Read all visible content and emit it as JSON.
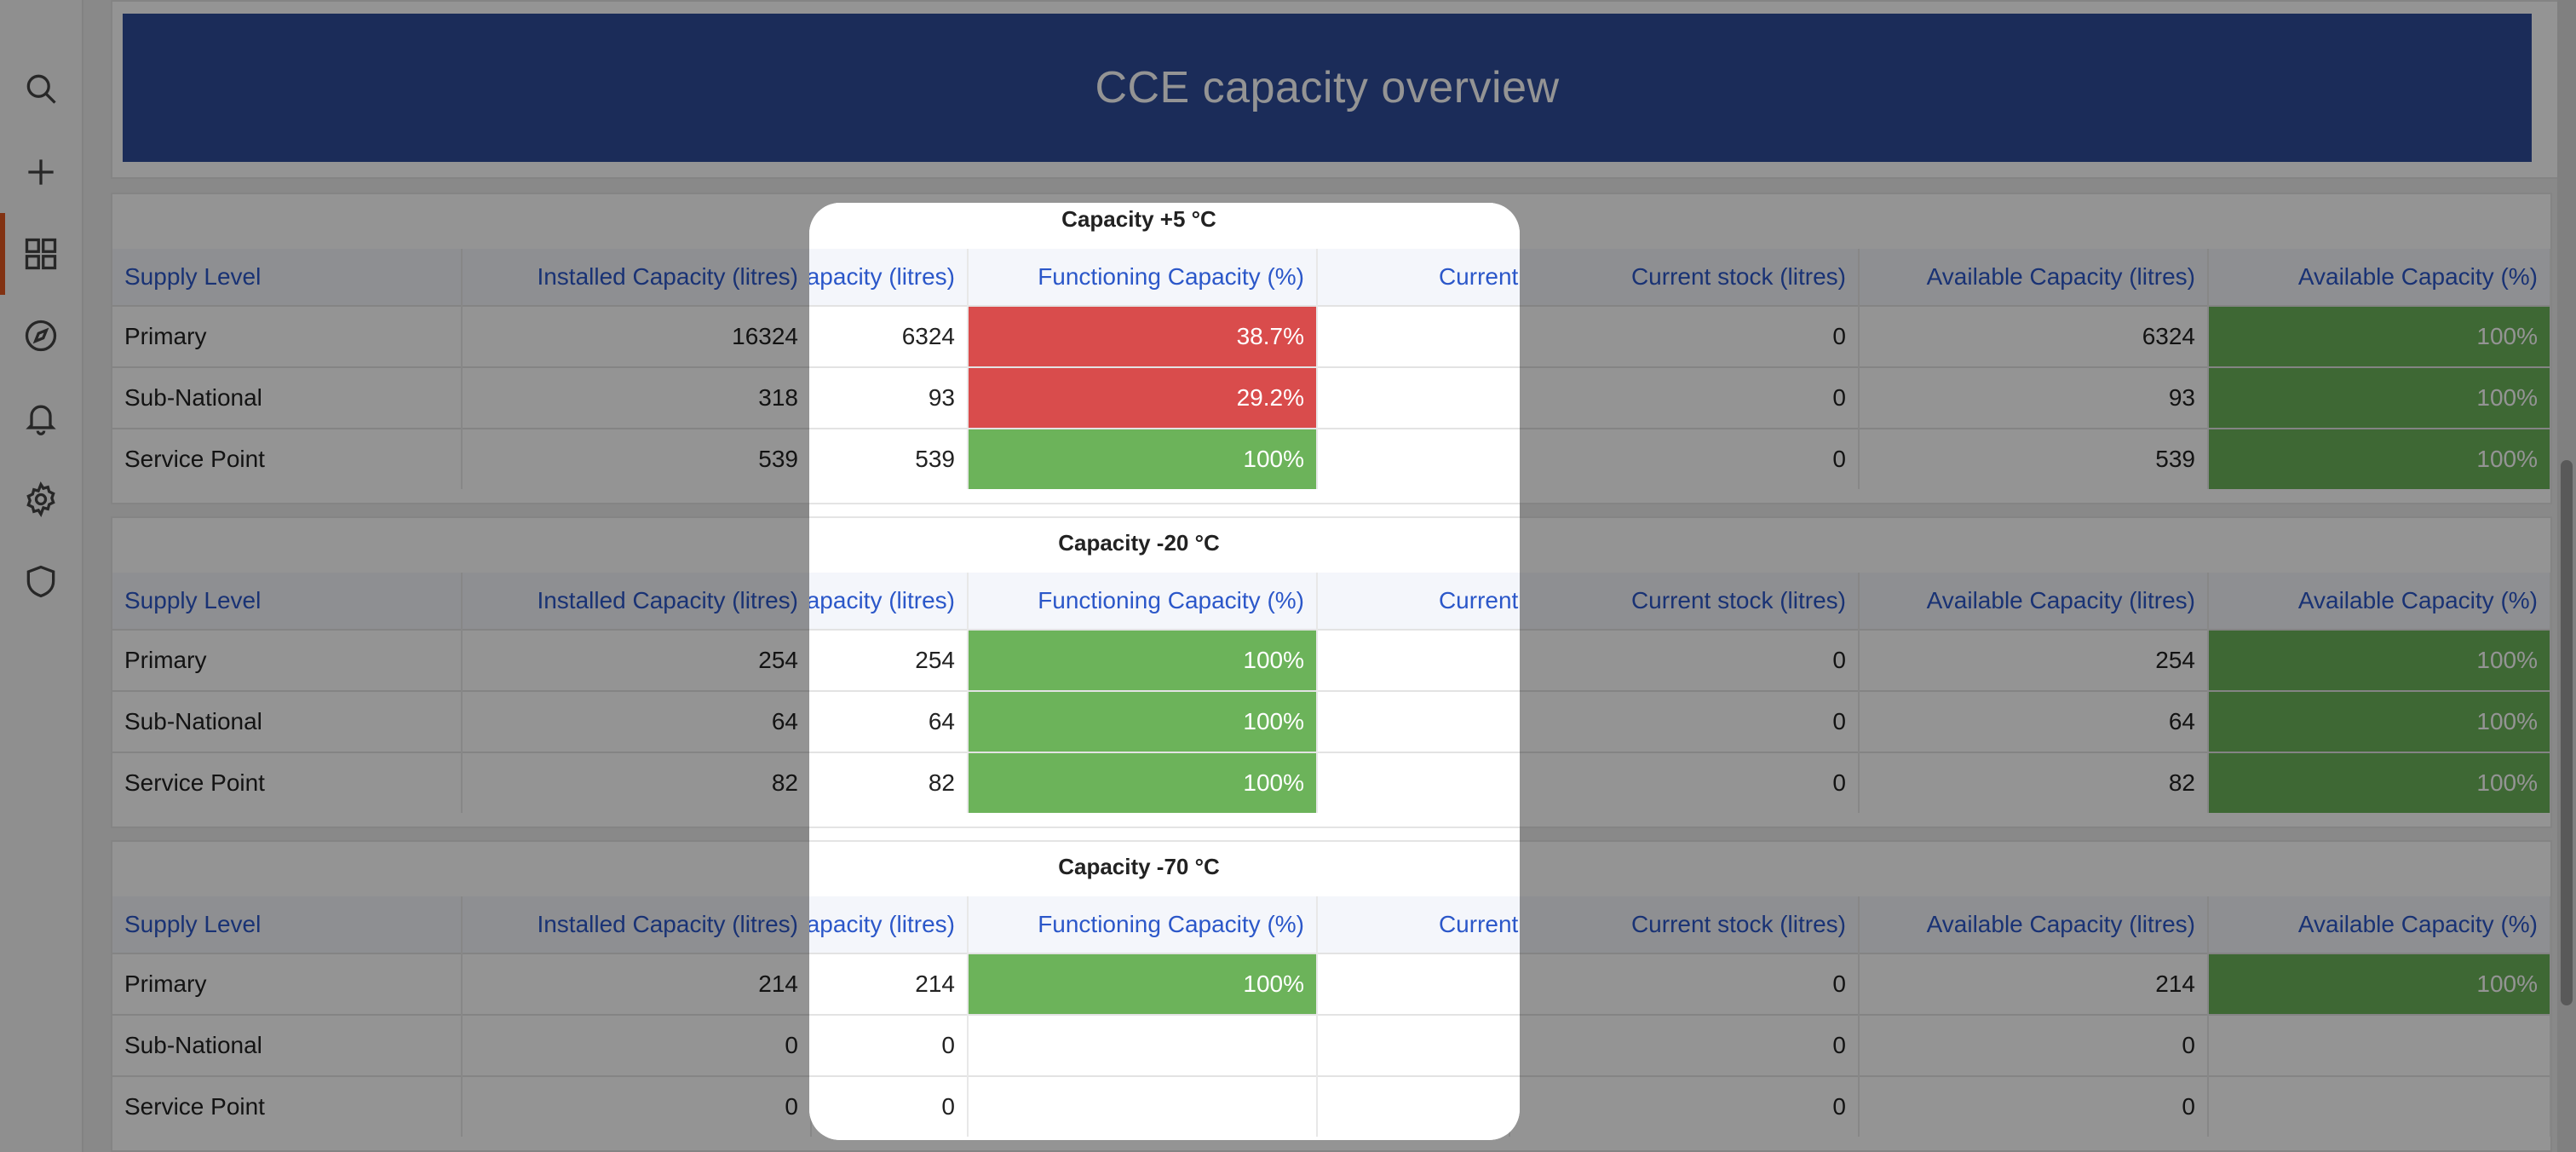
{
  "nav": {
    "items": [
      {
        "name": "search-icon"
      },
      {
        "name": "plus-icon"
      },
      {
        "name": "dashboard-grid-icon"
      },
      {
        "name": "compass-icon"
      },
      {
        "name": "bell-icon"
      },
      {
        "name": "gear-icon"
      },
      {
        "name": "shield-icon"
      }
    ],
    "active_color": "#e0561f"
  },
  "dashboard": {
    "title": "CCE capacity overview",
    "banner_color": "#2f4d9a"
  },
  "columns": [
    "Supply Level",
    "Installed Capacity (litres)",
    "Functioning Capacity (litres)",
    "Functioning Capacity (%)",
    "Current stock (litres)",
    "Available Capacity (litres)",
    "Available Capacity (%)"
  ],
  "panels": [
    {
      "title": "Capacity +5 °C",
      "rows": [
        {
          "level": "Primary",
          "installed": "16324",
          "functioning": "6324",
          "functioning_pct": "38.7%",
          "pct_status": "red",
          "stock": "0",
          "available": "6324",
          "available_pct": "100%",
          "avail_status": "green"
        },
        {
          "level": "Sub-National",
          "installed": "318",
          "functioning": "93",
          "functioning_pct": "29.2%",
          "pct_status": "red",
          "stock": "0",
          "available": "93",
          "available_pct": "100%",
          "avail_status": "green"
        },
        {
          "level": "Service Point",
          "installed": "539",
          "functioning": "539",
          "functioning_pct": "100%",
          "pct_status": "green",
          "stock": "0",
          "available": "539",
          "available_pct": "100%",
          "avail_status": "green"
        }
      ]
    },
    {
      "title": "Capacity -20 °C",
      "rows": [
        {
          "level": "Primary",
          "installed": "254",
          "functioning": "254",
          "functioning_pct": "100%",
          "pct_status": "green",
          "stock": "0",
          "available": "254",
          "available_pct": "100%",
          "avail_status": "green"
        },
        {
          "level": "Sub-National",
          "installed": "64",
          "functioning": "64",
          "functioning_pct": "100%",
          "pct_status": "green",
          "stock": "0",
          "available": "64",
          "available_pct": "100%",
          "avail_status": "green"
        },
        {
          "level": "Service Point",
          "installed": "82",
          "functioning": "82",
          "functioning_pct": "100%",
          "pct_status": "green",
          "stock": "0",
          "available": "82",
          "available_pct": "100%",
          "avail_status": "green"
        }
      ]
    },
    {
      "title": "Capacity -70 °C",
      "rows": [
        {
          "level": "Primary",
          "installed": "214",
          "functioning": "214",
          "functioning_pct": "100%",
          "pct_status": "green",
          "stock": "0",
          "available": "214",
          "available_pct": "100%",
          "avail_status": "green"
        },
        {
          "level": "Sub-National",
          "installed": "0",
          "functioning": "0",
          "functioning_pct": "",
          "pct_status": "none",
          "stock": "0",
          "available": "0",
          "available_pct": "",
          "avail_status": "none"
        },
        {
          "level": "Service Point",
          "installed": "0",
          "functioning": "0",
          "functioning_pct": "",
          "pct_status": "none",
          "stock": "0",
          "available": "0",
          "available_pct": "",
          "avail_status": "none"
        }
      ]
    }
  ],
  "status_colors": {
    "red": "#d94c4c",
    "green": "#6cb35a"
  }
}
